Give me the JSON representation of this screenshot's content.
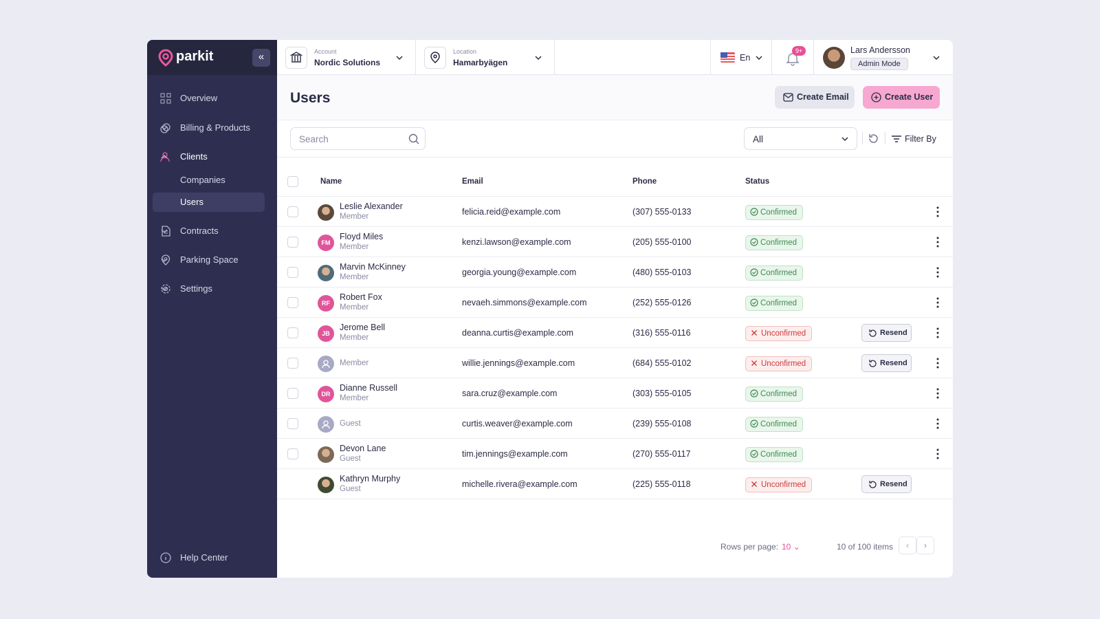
{
  "sidebar": {
    "logo": "parkit",
    "nav": [
      {
        "label": "Overview"
      },
      {
        "label": "Billing & Products"
      },
      {
        "label": "Clients",
        "children": [
          "Companies",
          "Users"
        ]
      },
      {
        "label": "Contracts"
      },
      {
        "label": "Parking Space"
      },
      {
        "label": "Settings"
      }
    ],
    "help": "Help Center"
  },
  "topbar": {
    "account": {
      "caption": "Account",
      "value": "Nordic Solutions"
    },
    "location": {
      "caption": "Location",
      "value": "Hamarbyägen"
    },
    "language": "En",
    "notifications": "9+",
    "user": {
      "name": "Lars Andersson",
      "mode": "Admin Mode"
    }
  },
  "page": {
    "title": "Users",
    "actions": [
      "Create Email",
      "Create User"
    ]
  },
  "toolbar": {
    "search_placeholder": "Search",
    "filter_select": "All",
    "filter_button": "Filter By"
  },
  "table": {
    "columns": [
      "Name",
      "Email",
      "Phone",
      "Status"
    ],
    "rows": [
      {
        "name": "Leslie Alexander",
        "role": "Member",
        "email": "felicia.reid@example.com",
        "phone": "(307) 555-0133",
        "status": "Confirmed"
      },
      {
        "name": "Floyd Miles",
        "initials": "FM",
        "role": "Member",
        "email": "kenzi.lawson@example.com",
        "phone": "(205) 555-0100",
        "status": "Confirmed"
      },
      {
        "name": "Marvin McKinney",
        "role": "Member",
        "email": "georgia.young@example.com",
        "phone": "(480) 555-0103",
        "status": "Confirmed"
      },
      {
        "name": "Robert Fox",
        "initials": "RF",
        "role": "Member",
        "email": "nevaeh.simmons@example.com",
        "phone": "(252) 555-0126",
        "status": "Confirmed"
      },
      {
        "name": "Jerome Bell",
        "initials": "JB",
        "role": "Member",
        "email": "deanna.curtis@example.com",
        "phone": "(316) 555-0116",
        "status": "Unconfirmed",
        "action": "Resend"
      },
      {
        "role": "Member",
        "email": "willie.jennings@example.com",
        "phone": "(684) 555-0102",
        "status": "Unconfirmed",
        "action": "Resend"
      },
      {
        "name": "Dianne Russell",
        "initials": "DR",
        "role": "Member",
        "email": "sara.cruz@example.com",
        "phone": "(303) 555-0105",
        "status": "Confirmed"
      },
      {
        "role": "Guest",
        "email": "curtis.weaver@example.com",
        "phone": "(239) 555-0108",
        "status": "Confirmed"
      },
      {
        "name": "Devon Lane",
        "role": "Guest",
        "email": "tim.jennings@example.com",
        "phone": "(270) 555-0117",
        "status": "Confirmed"
      },
      {
        "name": "Kathryn Murphy",
        "role": "Guest",
        "email": "michelle.rivera@example.com",
        "phone": "(225) 555-0118",
        "status": "Unconfirmed",
        "action": "Resend"
      }
    ]
  },
  "pagination": {
    "rows_per_page_label": "Rows per page:",
    "rows_per_page": "10",
    "summary": "10 of 100 items"
  }
}
